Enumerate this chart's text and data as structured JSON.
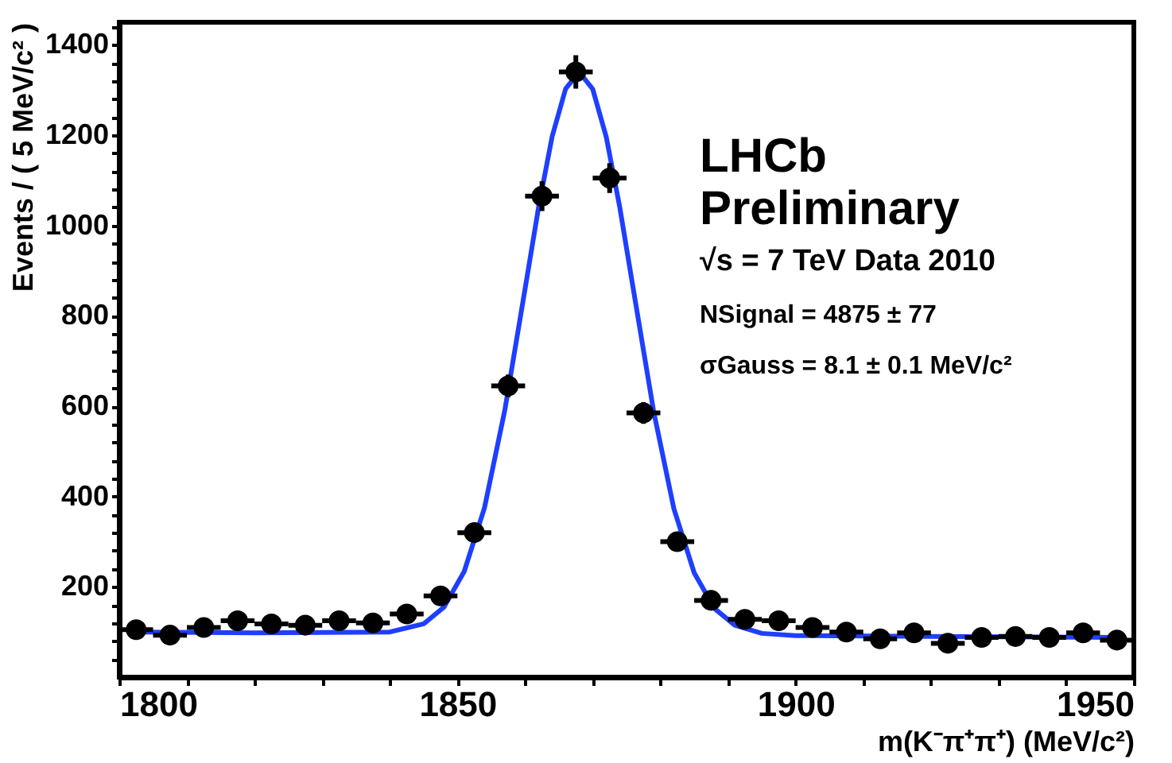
{
  "chart_data": {
    "type": "scatter",
    "xlabel": "m(K⁻π⁺π⁺) (MeV/c²)",
    "ylabel": "Events / ( 5 MeV/c² )",
    "xlim": [
      1800,
      1950
    ],
    "ylim": [
      0,
      1450
    ],
    "xticks": [
      1800,
      {
        "value": 1810,
        "label": null
      },
      {
        "value": 1820,
        "label": null
      },
      {
        "value": 1830,
        "label": null
      },
      {
        "value": 1840,
        "label": null
      },
      1850,
      {
        "value": 1860,
        "label": null
      },
      {
        "value": 1870,
        "label": null
      },
      {
        "value": 1880,
        "label": null
      },
      {
        "value": 1890,
        "label": null
      },
      1900,
      {
        "value": 1910,
        "label": null
      },
      {
        "value": 1920,
        "label": null
      },
      {
        "value": 1930,
        "label": null
      },
      {
        "value": 1940,
        "label": null
      },
      1950
    ],
    "yticks": [
      {
        "value": 40,
        "label": null
      },
      {
        "value": 80,
        "label": null
      },
      {
        "value": 120,
        "label": null
      },
      {
        "value": 160,
        "label": null
      },
      200,
      {
        "value": 240,
        "label": null
      },
      {
        "value": 280,
        "label": null
      },
      {
        "value": 320,
        "label": null
      },
      {
        "value": 360,
        "label": null
      },
      400,
      {
        "value": 440,
        "label": null
      },
      {
        "value": 480,
        "label": null
      },
      {
        "value": 520,
        "label": null
      },
      {
        "value": 560,
        "label": null
      },
      600,
      {
        "value": 640,
        "label": null
      },
      {
        "value": 680,
        "label": null
      },
      {
        "value": 720,
        "label": null
      },
      {
        "value": 760,
        "label": null
      },
      800,
      {
        "value": 840,
        "label": null
      },
      {
        "value": 880,
        "label": null
      },
      {
        "value": 920,
        "label": null
      },
      {
        "value": 960,
        "label": null
      },
      1000,
      {
        "value": 1040,
        "label": null
      },
      {
        "value": 1080,
        "label": null
      },
      {
        "value": 1120,
        "label": null
      },
      {
        "value": 1160,
        "label": null
      },
      1200,
      {
        "value": 1240,
        "label": null
      },
      {
        "value": 1280,
        "label": null
      },
      {
        "value": 1320,
        "label": null
      },
      {
        "value": 1360,
        "label": null
      },
      1400,
      {
        "value": 1440,
        "label": null
      }
    ],
    "grid": false,
    "annotations": [
      "LHCb",
      "Preliminary",
      "√s = 7 TeV Data 2010",
      "NSignal = 4875 ± 77",
      "σGauss = 8.1 ± 0.1 MeV/c²"
    ],
    "series": [
      {
        "type": "line",
        "color": "#1f3fff",
        "line_style": "solid",
        "x": [
          1802.5,
          1820,
          1840,
          1845,
          1848,
          1851,
          1854,
          1857,
          1860,
          1862,
          1864,
          1866,
          1868,
          1870,
          1872,
          1874,
          1876,
          1879,
          1882,
          1885,
          1888,
          1891,
          1895,
          1900,
          1920,
          1947.5
        ],
        "values": [
          100,
          98,
          100,
          118,
          155,
          234,
          375,
          591,
          860,
          1041,
          1197,
          1303,
          1340,
          1302,
          1196,
          1040,
          859,
          589,
          373,
          231,
          152,
          115,
          97,
          92,
          90,
          88
        ]
      },
      {
        "color": "#000000",
        "marker": "circle",
        "x": [
          1802.5,
          1807.5,
          1812.5,
          1817.5,
          1822.5,
          1827.5,
          1832.5,
          1837.5,
          1842.5,
          1847.5,
          1852.5,
          1857.5,
          1862.5,
          1867.5,
          1872.5,
          1877.5,
          1882.5,
          1887.5,
          1892.5,
          1897.5,
          1902.5,
          1907.5,
          1912.5,
          1917.5,
          1922.5,
          1927.5,
          1932.5,
          1937.5,
          1942.5,
          1947.5
        ],
        "values": [
          105,
          93,
          110,
          125,
          118,
          115,
          125,
          120,
          140,
          180,
          320,
          645,
          1065,
          1340,
          1105,
          585,
          300,
          170,
          128,
          125,
          110,
          100,
          85,
          98,
          75,
          88,
          90,
          88,
          98,
          82
        ],
        "errors": [
          10,
          10,
          10,
          11,
          11,
          11,
          11,
          11,
          12,
          13,
          18,
          25,
          33,
          37,
          33,
          24,
          17,
          13,
          11,
          11,
          10,
          10,
          9,
          10,
          9,
          9,
          9,
          9,
          10,
          9
        ],
        "xerrors": [
          2.5,
          2.5,
          2.5,
          2.5,
          2.5,
          2.5,
          2.5,
          2.5,
          2.5,
          2.5,
          2.5,
          2.5,
          2.5,
          2.5,
          2.5,
          2.5,
          2.5,
          2.5,
          2.5,
          2.5,
          2.5,
          2.5,
          2.5,
          2.5,
          2.5,
          2.5,
          2.5,
          2.5,
          2.5,
          2.5
        ]
      }
    ]
  }
}
